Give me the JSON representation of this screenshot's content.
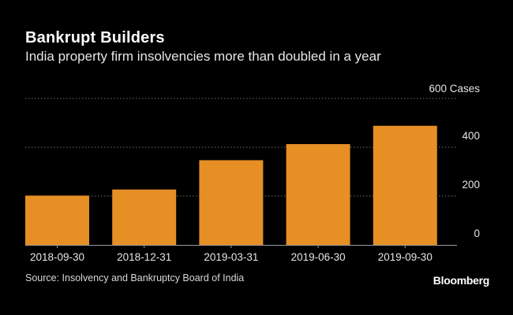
{
  "title": "Bankrupt Builders",
  "subtitle": "India property firm insolvencies more than doubled in a year",
  "source": "Source: Insolvency and Bankruptcy Board of India",
  "brand": "Bloomberg",
  "colors": {
    "bar": "#e58f25",
    "background": "#000000",
    "grid": "#6e6e6e",
    "text": "#ffffff"
  },
  "chart_data": {
    "type": "bar",
    "title": "Bankrupt Builders",
    "subtitle": "India property firm insolvencies more than doubled in a year",
    "categories": [
      "2018-09-30",
      "2018-12-31",
      "2019-03-31",
      "2019-06-30",
      "2019-09-30"
    ],
    "values": [
      202,
      227,
      347,
      413,
      488
    ],
    "xlabel": "",
    "ylabel": "Cases",
    "ylim": [
      0,
      600
    ],
    "yticks": [
      0,
      200,
      400,
      600
    ],
    "ytick_labels": [
      "0",
      "200",
      "400",
      "600 Cases"
    ],
    "grid": true,
    "legend": "none"
  }
}
